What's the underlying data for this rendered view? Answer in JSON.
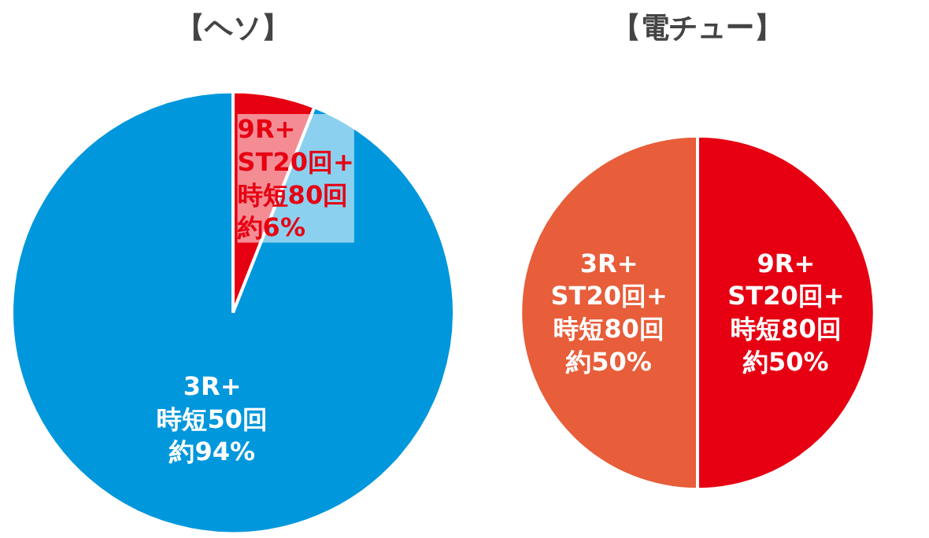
{
  "chart_data": [
    {
      "type": "pie",
      "title": "【ヘソ】",
      "categories": [
        "9R+\nST20回+\n時短80回",
        "3R+\n時短50回"
      ],
      "values": [
        6,
        94
      ],
      "value_labels": [
        "約6%",
        "約94%"
      ],
      "colors": [
        "#e60012",
        "#0097dc"
      ]
    },
    {
      "type": "pie",
      "title": "【電チュー】",
      "categories": [
        "9R+\nST20回+\n時短80回",
        "3R+\nST20回+\n時短80回"
      ],
      "values": [
        50,
        50
      ],
      "value_labels": [
        "約50%",
        "約50%"
      ],
      "colors": [
        "#e60012",
        "#e85d3a"
      ]
    }
  ]
}
